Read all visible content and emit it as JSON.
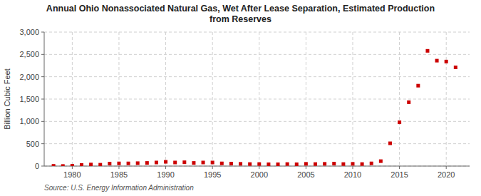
{
  "chart_data": {
    "type": "scatter",
    "title": "Annual Ohio Nonassociated Natural Gas, Wet After Lease Separation, Estimated Production\nfrom Reserves",
    "ylabel": "Billion Cubic Feet",
    "source": "Source: U.S. Energy Information Administration",
    "x": [
      1978,
      1979,
      1980,
      1981,
      1982,
      1983,
      1984,
      1985,
      1986,
      1987,
      1988,
      1989,
      1990,
      1991,
      1992,
      1993,
      1994,
      1995,
      1996,
      1997,
      1998,
      1999,
      2000,
      2001,
      2002,
      2003,
      2004,
      2005,
      2006,
      2007,
      2008,
      2009,
      2010,
      2011,
      2012,
      2013,
      2014,
      2015,
      2016,
      2017,
      2018,
      2019,
      2020,
      2021
    ],
    "values": [
      5,
      2,
      8,
      25,
      35,
      30,
      55,
      60,
      60,
      65,
      70,
      80,
      95,
      80,
      85,
      70,
      80,
      80,
      60,
      55,
      50,
      45,
      45,
      40,
      40,
      45,
      40,
      50,
      45,
      50,
      55,
      45,
      50,
      45,
      60,
      110,
      510,
      980,
      1430,
      1800,
      2580,
      2360,
      2340,
      2210
    ],
    "color": "#cc0000",
    "marker": "square",
    "xlim": [
      1977,
      2022.5
    ],
    "ylim": [
      0,
      3000
    ],
    "xticks": [
      1980,
      1985,
      1990,
      1995,
      2000,
      2005,
      2010,
      2015,
      2020
    ],
    "yticks": [
      0,
      500,
      {
        "value": 1000,
        "label": "1,000"
      },
      {
        "value": 1500,
        "label": "1,500"
      },
      {
        "value": 2000,
        "label": "2,000"
      },
      {
        "value": 2500,
        "label": "2,500"
      },
      {
        "value": 3000,
        "label": "3,000"
      }
    ],
    "grid": true
  }
}
